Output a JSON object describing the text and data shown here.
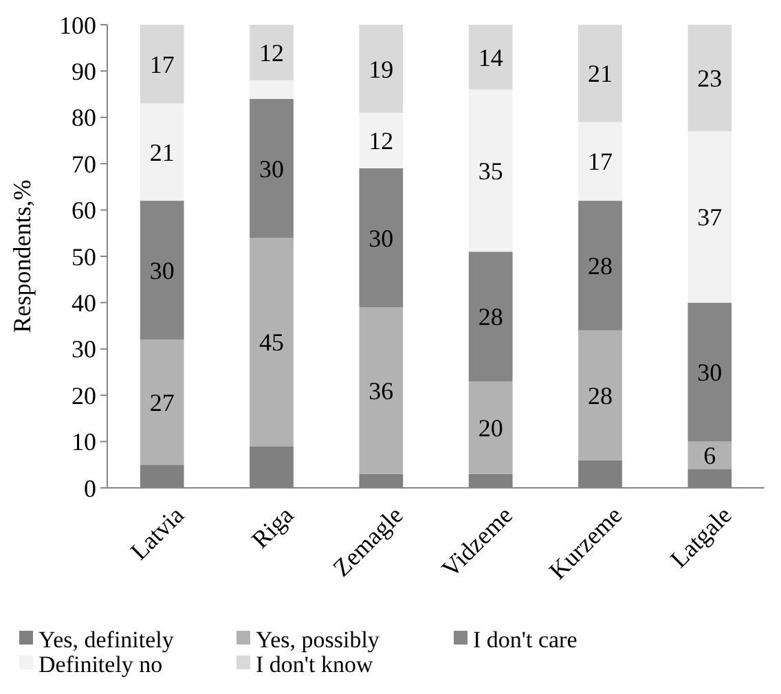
{
  "chart_data": {
    "type": "bar",
    "stacked": true,
    "ylabel": "Respondents,%",
    "categories": [
      "Latvia",
      "Riga",
      "Zemagle",
      "Vidzeme",
      "Kurzeme",
      "Latgale"
    ],
    "ylim": [
      0,
      100
    ],
    "yticks": [
      0,
      10,
      20,
      30,
      40,
      50,
      60,
      70,
      80,
      90,
      100
    ],
    "legend": "bottom",
    "series": [
      {
        "name": "Yes, definitely",
        "color": "#808080",
        "values": [
          5,
          9,
          3,
          3,
          6,
          4
        ]
      },
      {
        "name": "Yes, possibly",
        "color": "#b2b2b2",
        "values": [
          27,
          45,
          36,
          20,
          28,
          6
        ],
        "value_labels": [
          "27",
          "45",
          "36",
          "20",
          "28",
          "6"
        ]
      },
      {
        "name": "I don't care",
        "color": "#868686",
        "values": [
          30,
          30,
          30,
          28,
          28,
          30
        ],
        "value_labels": [
          "30",
          "30",
          "30",
          "28",
          "28",
          "30"
        ]
      },
      {
        "name": "Definitely no",
        "color": "#f2f2f2",
        "values": [
          21,
          4,
          12,
          35,
          17,
          37
        ],
        "value_labels": [
          "21",
          null,
          "12",
          "35",
          "17",
          "37"
        ]
      },
      {
        "name": "I don't know",
        "color": "#d9d9d9",
        "values": [
          17,
          12,
          19,
          14,
          21,
          23
        ],
        "value_labels": [
          "17",
          "12",
          "19",
          "14",
          "21",
          "23"
        ]
      }
    ]
  }
}
